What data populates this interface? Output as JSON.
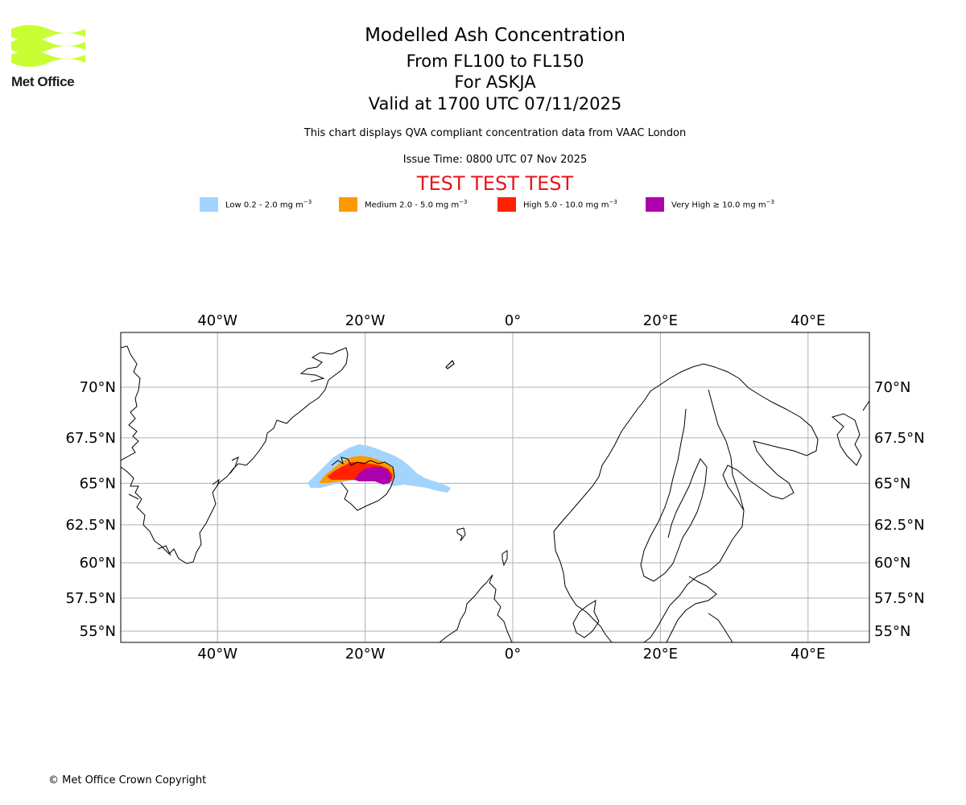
{
  "logo": {
    "text": "Met Office",
    "color": "#c8ff32"
  },
  "header": {
    "title": "Modelled Ash Concentration",
    "subtitle": "From FL100 to FL150",
    "volcano": "For ASKJA",
    "valid": "Valid at 1700 UTC 07/11/2025",
    "description": "This chart displays QVA compliant concentration data from VAAC London",
    "issue_time": "Issue Time: 0800 UTC 07 Nov 2025",
    "test_banner": "TEST TEST TEST"
  },
  "legend": [
    {
      "label": "Low 0.2 - 2.0 mg m",
      "unit_exp": "−3",
      "color": "#a3d4fd"
    },
    {
      "label": "Medium 2.0 - 5.0 mg m",
      "unit_exp": "−3",
      "color": "#ff9900"
    },
    {
      "label": "High 5.0 - 10.0 mg m",
      "unit_exp": "−3",
      "color": "#ff2200"
    },
    {
      "label": "Very High  ≥  10.0 mg m",
      "unit_exp": "−3",
      "color": "#ad00ad"
    }
  ],
  "map": {
    "lon_ticks": [
      "40°W",
      "20°W",
      "0°",
      "20°E",
      "40°E"
    ],
    "lat_ticks": [
      "70°N",
      "67.5°N",
      "65°N",
      "62.5°N",
      "60°N",
      "57.5°N",
      "55°N"
    ],
    "lon_values": [
      -40,
      -20,
      0,
      20,
      40
    ],
    "lat_values": [
      70,
      67.5,
      65,
      62.5,
      60,
      57.5,
      55
    ],
    "gridlines": true
  },
  "footer": {
    "copyright": "© Met Office Crown Copyright"
  }
}
